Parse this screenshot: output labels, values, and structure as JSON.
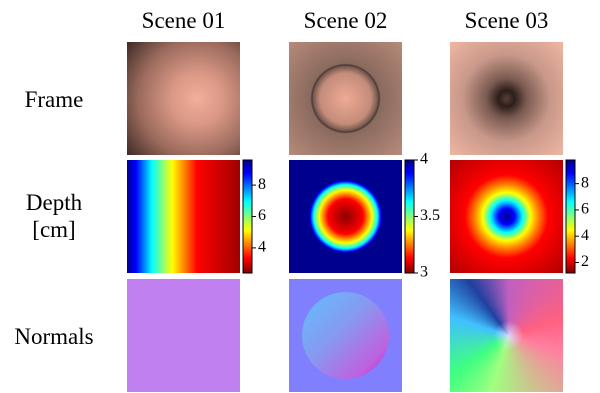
{
  "columns": [
    "Scene 01",
    "Scene 02",
    "Scene 03"
  ],
  "rows": [
    [
      "Frame"
    ],
    [
      "Depth",
      "[cm]"
    ],
    [
      "Normals"
    ]
  ],
  "colorbars": [
    {
      "lim": [
        2.4,
        9.6
      ],
      "ticks": [
        4,
        6,
        8
      ]
    },
    {
      "lim": [
        3,
        4
      ],
      "ticks": [
        3,
        3.5,
        4
      ]
    },
    {
      "lim": [
        1.2,
        9.8
      ],
      "ticks": [
        2,
        4,
        6,
        8
      ]
    }
  ]
}
